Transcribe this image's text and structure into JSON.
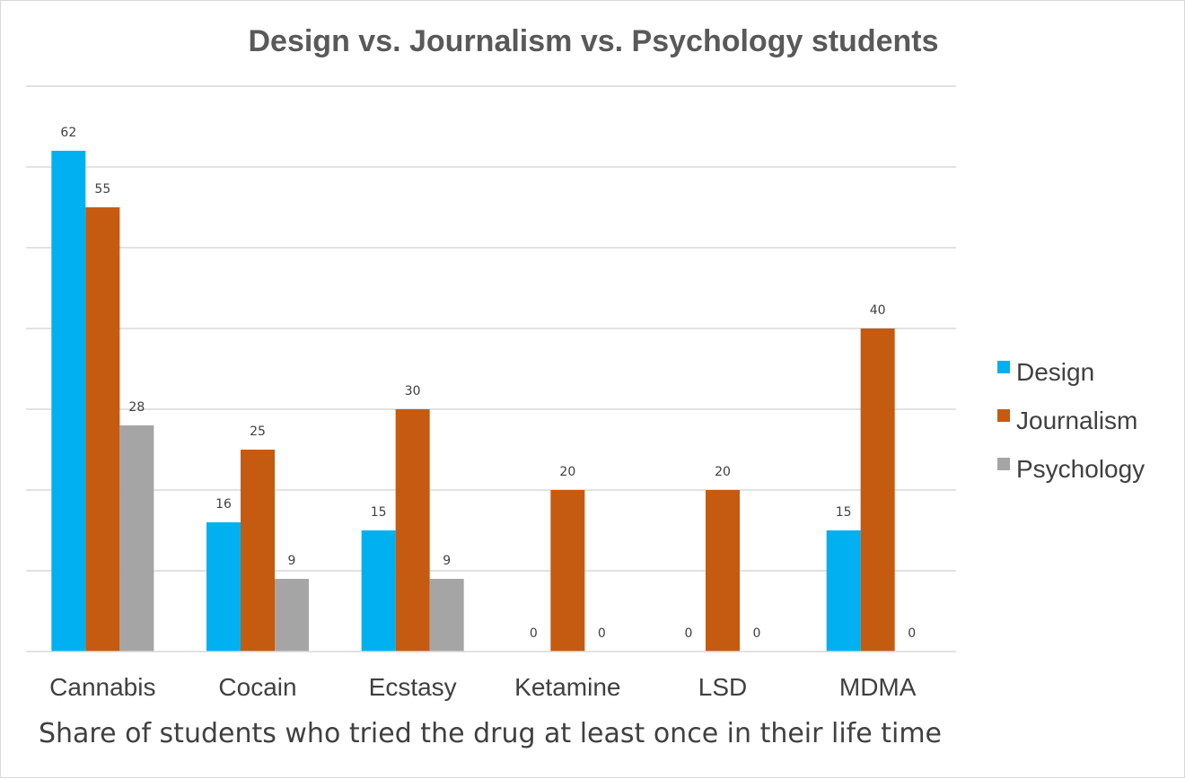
{
  "chart_data": {
    "type": "bar",
    "title": "Design vs. Journalism vs. Psychology students",
    "xlabel": "Share of students who tried the drug at least once in their life time",
    "ylabel": "",
    "ylim": [
      0,
      70
    ],
    "grid": true,
    "legend_position": "right",
    "categories": [
      "Cannabis",
      "Cocain",
      "Ecstasy",
      "Ketamine",
      "LSD",
      "MDMA"
    ],
    "series": [
      {
        "name": "Design",
        "color": "#00b0f0",
        "values": [
          62,
          16,
          15,
          0,
          0,
          15
        ]
      },
      {
        "name": "Journalism",
        "color": "#c55a11",
        "values": [
          55,
          25,
          30,
          20,
          20,
          40
        ]
      },
      {
        "name": "Psychology",
        "color": "#a5a5a5",
        "values": [
          28,
          9,
          9,
          0,
          0,
          0
        ]
      }
    ]
  }
}
